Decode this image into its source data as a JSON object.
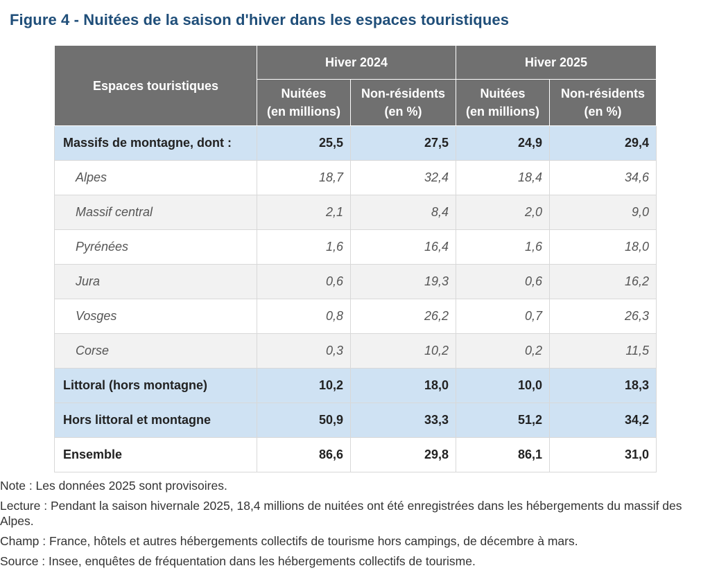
{
  "title": "Figure 4 - Nuitées de la saison d'hiver dans les espaces touristiques",
  "chart_data": {
    "type": "table",
    "title": "Figure 4 - Nuitées de la saison d'hiver dans les espaces touristiques",
    "row_header": "Espaces touristiques",
    "column_groups": [
      "Hiver 2024",
      "Hiver 2025"
    ],
    "columns": [
      {
        "group": "Hiver 2024",
        "label_line1": "Nuitées",
        "label_line2": "(en millions)"
      },
      {
        "group": "Hiver 2024",
        "label_line1": "Non-résidents",
        "label_line2": "(en %)"
      },
      {
        "group": "Hiver 2025",
        "label_line1": "Nuitées",
        "label_line2": "(en millions)"
      },
      {
        "group": "Hiver 2025",
        "label_line1": "Non-résidents",
        "label_line2": "(en %)"
      }
    ],
    "rows": [
      {
        "label": "Massifs de montagne, dont :",
        "style": "bold",
        "values": [
          "25,5",
          "27,5",
          "24,9",
          "29,4"
        ]
      },
      {
        "label": "Alpes",
        "style": "sub",
        "values": [
          "18,7",
          "32,4",
          "18,4",
          "34,6"
        ]
      },
      {
        "label": "Massif central",
        "style": "sub",
        "values": [
          "2,1",
          "8,4",
          "2,0",
          "9,0"
        ]
      },
      {
        "label": "Pyrénées",
        "style": "sub",
        "values": [
          "1,6",
          "16,4",
          "1,6",
          "18,0"
        ]
      },
      {
        "label": "Jura",
        "style": "sub",
        "values": [
          "0,6",
          "19,3",
          "0,6",
          "16,2"
        ]
      },
      {
        "label": "Vosges",
        "style": "sub",
        "values": [
          "0,8",
          "26,2",
          "0,7",
          "26,3"
        ]
      },
      {
        "label": "Corse",
        "style": "sub",
        "values": [
          "0,3",
          "10,2",
          "0,2",
          "11,5"
        ]
      },
      {
        "label": "Littoral (hors montagne)",
        "style": "bold",
        "values": [
          "10,2",
          "18,0",
          "10,0",
          "18,3"
        ]
      },
      {
        "label": "Hors littoral et montagne",
        "style": "bold",
        "values": [
          "50,9",
          "33,3",
          "51,2",
          "34,2"
        ]
      },
      {
        "label": "Ensemble",
        "style": "total",
        "values": [
          "86,6",
          "29,8",
          "86,1",
          "31,0"
        ]
      }
    ]
  },
  "notes": [
    "Note : Les données 2025 sont provisoires.",
    "Lecture : Pendant la saison hivernale 2025, 18,4 millions de nuitées ont été enregistrées dans les hébergements du massif des Alpes.",
    "Champ : France, hôtels et autres hébergements collectifs de tourisme hors campings, de décembre à mars.",
    "Source : Insee, enquêtes de fréquentation dans les hébergements collectifs de tourisme."
  ],
  "colors": {
    "title": "#1f4e79",
    "header_bg": "#707070",
    "highlight_row_bg": "#cfe2f3",
    "alt_row_bg": "#f2f2f2"
  }
}
